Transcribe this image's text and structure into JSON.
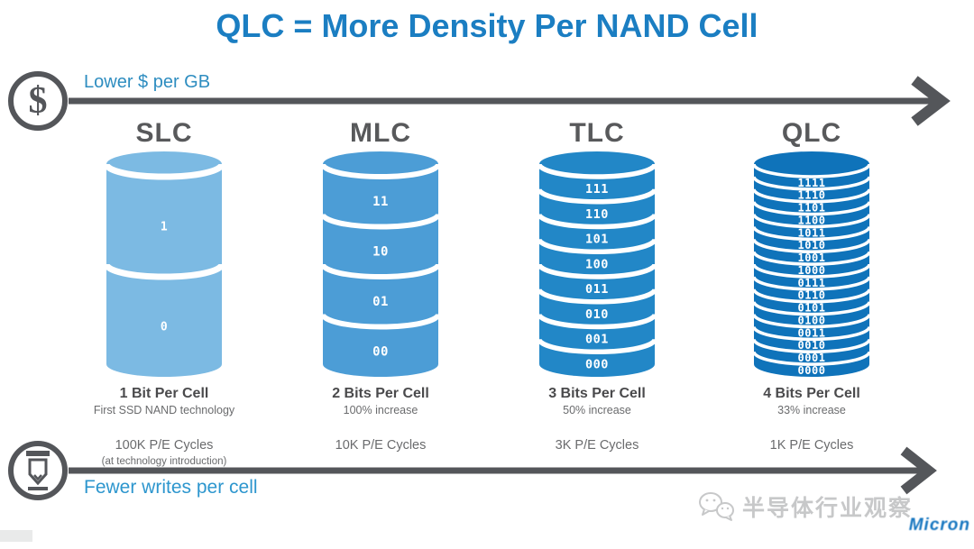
{
  "title": "QLC = More Density Per NAND Cell",
  "top_axis": {
    "label": "Lower $ per GB",
    "icon": "dollar-icon",
    "dollar_glyph": "$"
  },
  "bottom_axis": {
    "label": "Fewer writes per cell",
    "icon": "pen-icon"
  },
  "columns": [
    {
      "name": "SLC",
      "bits": [
        "1",
        "0"
      ],
      "color": "#7cbae3",
      "caption_title": "1 Bit Per Cell",
      "caption_sub": "First SSD NAND technology",
      "pe": "100K P/E Cycles",
      "pe_note": "(at technology introduction)"
    },
    {
      "name": "MLC",
      "bits": [
        "11",
        "10",
        "01",
        "00"
      ],
      "color": "#4c9dd6",
      "caption_title": "2 Bits Per Cell",
      "caption_sub": "100% increase",
      "pe": "10K P/E Cycles"
    },
    {
      "name": "TLC",
      "bits": [
        "111",
        "110",
        "101",
        "100",
        "011",
        "010",
        "001",
        "000"
      ],
      "color": "#2287c7",
      "caption_title": "3 Bits Per Cell",
      "caption_sub": "50% increase",
      "pe": "3K P/E Cycles"
    },
    {
      "name": "QLC",
      "bits": [
        "1111",
        "1110",
        "1101",
        "1100",
        "1011",
        "1010",
        "1001",
        "1000",
        "0111",
        "0110",
        "0101",
        "0100",
        "0011",
        "0010",
        "0001",
        "0000"
      ],
      "color": "#0f73ba",
      "caption_title": "4 Bits Per Cell",
      "caption_sub": "33% increase",
      "pe": "1K P/E Cycles"
    }
  ],
  "watermark": {
    "text": "半导体行业观察",
    "logo": "Micron"
  },
  "colors": {
    "title_blue": "#1b7ec2",
    "top_axis_label_blue": "#2e8dc0",
    "bottom_axis_label_blue": "#2d96ce",
    "arrow_gray": "#54565a",
    "header_gray": "#58595b",
    "caption_gray": "#4a4a4c",
    "body_text_gray": "#6a6b6d",
    "separator_white": "#ffffff"
  }
}
